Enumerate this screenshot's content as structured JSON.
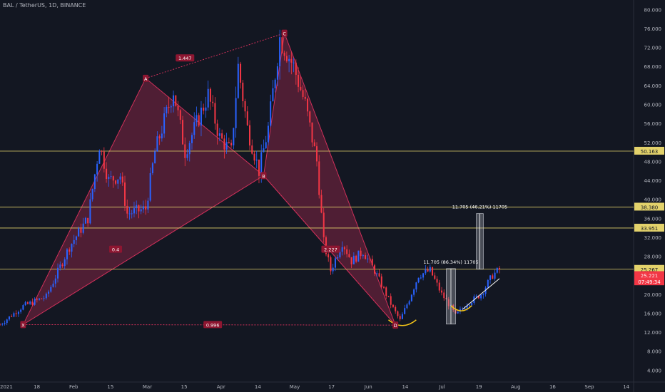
{
  "chart_title": "BAL / TetherUS, 1D, BINANCE",
  "chart_data": {
    "type": "candlestick",
    "symbol": "BAL / TetherUS",
    "interval": "1D",
    "exchange": "BINANCE",
    "x_ticks": [
      "2021",
      "18",
      "Feb",
      "15",
      "Mar",
      "15",
      "Apr",
      "14",
      "May",
      "17",
      "Jun",
      "14",
      "Jul",
      "19",
      "Aug",
      "16",
      "Sep",
      "14"
    ],
    "y_ticks": [
      "80.000",
      "76.000",
      "72.000",
      "68.000",
      "64.000",
      "60.000",
      "56.000",
      "52.000",
      "48.000",
      "44.000",
      "40.000",
      "36.000",
      "32.000",
      "28.000",
      "24.000",
      "20.000",
      "16.000",
      "12.000",
      "8.000",
      "4.000"
    ],
    "ylim": [
      1.5,
      82
    ],
    "x_range_days": [
      0,
      274
    ],
    "price_key_points": [
      {
        "day": 0,
        "price": 13.6
      },
      {
        "day": 10,
        "price": 17.5
      },
      {
        "day": 20,
        "price": 19.5
      },
      {
        "day": 30,
        "price": 30
      },
      {
        "day": 38,
        "price": 36
      },
      {
        "day": 43,
        "price": 51.5
      },
      {
        "day": 47,
        "price": 44
      },
      {
        "day": 52,
        "price": 45
      },
      {
        "day": 55,
        "price": 37
      },
      {
        "day": 63,
        "price": 38
      },
      {
        "day": 67,
        "price": 50
      },
      {
        "day": 75,
        "price": 63
      },
      {
        "day": 80,
        "price": 50
      },
      {
        "day": 90,
        "price": 62
      },
      {
        "day": 95,
        "price": 53
      },
      {
        "day": 100,
        "price": 50
      },
      {
        "day": 103,
        "price": 68
      },
      {
        "day": 107,
        "price": 55
      },
      {
        "day": 112,
        "price": 46
      },
      {
        "day": 116,
        "price": 55
      },
      {
        "day": 121,
        "price": 74
      },
      {
        "day": 127,
        "price": 68
      },
      {
        "day": 132,
        "price": 60
      },
      {
        "day": 137,
        "price": 48
      },
      {
        "day": 140,
        "price": 31
      },
      {
        "day": 143,
        "price": 25
      },
      {
        "day": 148,
        "price": 31
      },
      {
        "day": 152,
        "price": 27
      },
      {
        "day": 157,
        "price": 29
      },
      {
        "day": 162,
        "price": 25
      },
      {
        "day": 166,
        "price": 21
      },
      {
        "day": 170,
        "price": 17
      },
      {
        "day": 173,
        "price": 14.5
      },
      {
        "day": 177,
        "price": 19
      },
      {
        "day": 181,
        "price": 24
      },
      {
        "day": 186,
        "price": 25
      },
      {
        "day": 191,
        "price": 20
      },
      {
        "day": 194,
        "price": 18
      },
      {
        "day": 197,
        "price": 15.5
      },
      {
        "day": 202,
        "price": 18
      },
      {
        "day": 208,
        "price": 20
      },
      {
        "day": 213,
        "price": 24
      },
      {
        "day": 216,
        "price": 25.2
      }
    ],
    "horizontal_levels": [
      {
        "label": "50.163",
        "price": 50.163,
        "color": "#e3d26b"
      },
      {
        "label": "38.380",
        "price": 38.38,
        "color": "#e3d26b"
      },
      {
        "label": "33.951",
        "price": 33.951,
        "color": "#e3d26b"
      },
      {
        "label": "25.267",
        "price": 25.267,
        "color": "#e3d26b"
      }
    ],
    "harmonic_pattern": {
      "points": [
        {
          "label": "X",
          "day": 10,
          "price": 13.6
        },
        {
          "label": "A",
          "day": 63,
          "price": 65.5
        },
        {
          "label": "B",
          "day": 114,
          "price": 45.0
        },
        {
          "label": "C",
          "day": 123,
          "price": 75.0
        },
        {
          "label": "D",
          "day": 171,
          "price": 13.5
        }
      ],
      "ratios": [
        {
          "label": "1.447",
          "day": 80,
          "price": 69.8
        },
        {
          "label": "0.4",
          "day": 50,
          "price": 29.5
        },
        {
          "label": "0.996",
          "day": 92,
          "price": 13.6
        },
        {
          "label": "2.227",
          "day": 143,
          "price": 29.5
        }
      ]
    },
    "measurements": [
      {
        "label": "11.705 (86.34%) 11705",
        "day_from": 193,
        "day_to": 197,
        "price_from": 13.7,
        "price_to": 25.4
      },
      {
        "label": "11.705 (46.21%) 11705",
        "day_from": 206,
        "day_to": 209,
        "price_from": 25.3,
        "price_to": 37.0
      }
    ],
    "price_badges": [
      {
        "text": "25.267",
        "price": 25.267,
        "bg": "#e3d26b",
        "fg": "#131722"
      },
      {
        "text": "25.221",
        "price": 23.95,
        "bg": "#f23645",
        "fg": "#ffffff"
      },
      {
        "text": "07:49:34",
        "price": 22.65,
        "bg": "#f23645",
        "fg": "#ffffff"
      }
    ],
    "colors": {
      "up": "#2962ff",
      "down": "#f23645",
      "pattern_fill": "#d0305a",
      "level_line": "#e3d26b",
      "arc": "#f5c518",
      "trend": "#ffffff"
    }
  }
}
